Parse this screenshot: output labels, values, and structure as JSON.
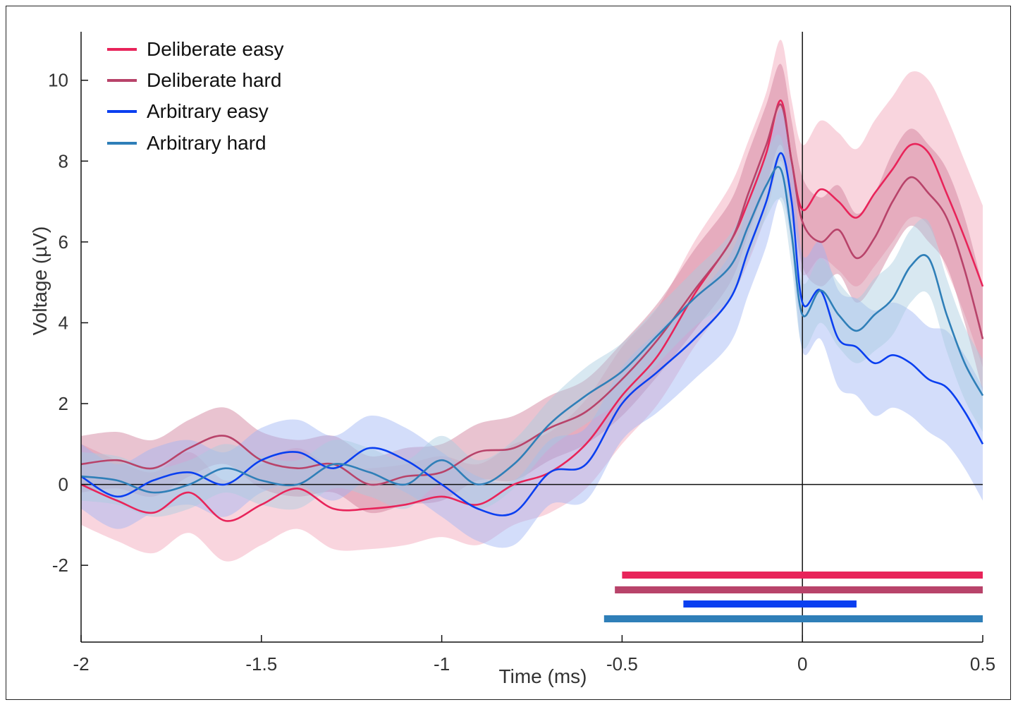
{
  "chart_data": {
    "type": "line",
    "title": "",
    "xlabel": "Time (ms)",
    "ylabel": "Voltage (µV)",
    "xlim": [
      -2,
      0.5
    ],
    "ylim": [
      -3.9,
      11.2
    ],
    "x_ticks": [
      "-2",
      "-1.5",
      "-1",
      "-0.5",
      "0",
      "0.5"
    ],
    "x_tick_values": [
      -2,
      -1.5,
      -1,
      -0.5,
      0,
      0.5
    ],
    "y_ticks": [
      "-2",
      "0",
      "2",
      "4",
      "6",
      "8",
      "10"
    ],
    "y_tick_values": [
      -2,
      0,
      2,
      4,
      6,
      8,
      10
    ],
    "grid": false,
    "reference_lines": {
      "x": 0,
      "y": 0
    },
    "legend_position": "top-left",
    "series": [
      {
        "name": "Deliberate easy",
        "color": "#e8245a",
        "band_color": "#f2a2b6",
        "x": [
          -2.0,
          -1.9,
          -1.8,
          -1.7,
          -1.6,
          -1.5,
          -1.4,
          -1.3,
          -1.2,
          -1.1,
          -1.0,
          -0.9,
          -0.8,
          -0.7,
          -0.6,
          -0.5,
          -0.4,
          -0.3,
          -0.2,
          -0.15,
          -0.1,
          -0.06,
          -0.03,
          0.0,
          0.05,
          0.1,
          0.15,
          0.2,
          0.25,
          0.3,
          0.35,
          0.4,
          0.45,
          0.5
        ],
        "y": [
          0.0,
          -0.4,
          -0.7,
          -0.2,
          -0.9,
          -0.5,
          -0.1,
          -0.6,
          -0.6,
          -0.5,
          -0.3,
          -0.5,
          0.0,
          0.3,
          1.0,
          2.2,
          3.2,
          4.7,
          6.0,
          7.0,
          8.2,
          9.5,
          8.0,
          6.8,
          7.3,
          7.0,
          6.6,
          7.2,
          7.8,
          8.4,
          8.2,
          7.2,
          6.1,
          4.9
        ],
        "band_halfwidth": [
          1.0,
          1.0,
          1.0,
          1.0,
          1.0,
          1.0,
          1.0,
          1.0,
          1.0,
          1.0,
          1.0,
          1.0,
          1.0,
          1.0,
          1.1,
          1.2,
          1.2,
          1.3,
          1.4,
          1.5,
          1.5,
          1.5,
          1.5,
          1.6,
          1.7,
          1.7,
          1.7,
          1.8,
          1.8,
          1.8,
          1.8,
          1.9,
          1.9,
          2.0
        ],
        "significance": [
          -0.5,
          0.5
        ]
      },
      {
        "name": "Deliberate hard",
        "color": "#b8436a",
        "band_color": "#cf7b96",
        "x": [
          -2.0,
          -1.9,
          -1.8,
          -1.7,
          -1.6,
          -1.5,
          -1.4,
          -1.3,
          -1.2,
          -1.1,
          -1.0,
          -0.9,
          -0.8,
          -0.7,
          -0.6,
          -0.5,
          -0.4,
          -0.3,
          -0.2,
          -0.15,
          -0.1,
          -0.06,
          -0.03,
          0.0,
          0.05,
          0.1,
          0.15,
          0.2,
          0.25,
          0.3,
          0.35,
          0.4,
          0.45,
          0.5
        ],
        "y": [
          0.5,
          0.6,
          0.4,
          0.9,
          1.2,
          0.6,
          0.4,
          0.5,
          0.0,
          0.2,
          0.3,
          0.8,
          0.9,
          1.4,
          1.8,
          2.6,
          3.6,
          4.8,
          6.0,
          7.2,
          8.4,
          9.4,
          8.0,
          6.5,
          6.0,
          6.3,
          5.6,
          6.1,
          7.0,
          7.6,
          7.2,
          6.6,
          5.3,
          3.6
        ],
        "band_halfwidth": [
          0.7,
          0.7,
          0.7,
          0.7,
          0.7,
          0.7,
          0.7,
          0.7,
          0.7,
          0.7,
          0.7,
          0.7,
          0.8,
          0.8,
          0.8,
          0.9,
          0.9,
          1.0,
          1.0,
          1.0,
          1.0,
          1.0,
          1.0,
          1.1,
          1.1,
          1.1,
          1.1,
          1.1,
          1.2,
          1.2,
          1.2,
          1.2,
          1.3,
          1.3
        ],
        "significance": [
          -0.52,
          0.5
        ]
      },
      {
        "name": "Arbitrary easy",
        "color": "#0a3ff0",
        "band_color": "#9db4f5",
        "x": [
          -2.0,
          -1.9,
          -1.8,
          -1.7,
          -1.6,
          -1.5,
          -1.4,
          -1.3,
          -1.2,
          -1.1,
          -1.0,
          -0.9,
          -0.8,
          -0.7,
          -0.6,
          -0.5,
          -0.4,
          -0.3,
          -0.2,
          -0.15,
          -0.1,
          -0.06,
          -0.03,
          0.0,
          0.05,
          0.1,
          0.15,
          0.2,
          0.25,
          0.3,
          0.35,
          0.4,
          0.45,
          0.5
        ],
        "y": [
          0.2,
          -0.3,
          0.1,
          0.3,
          0.0,
          0.6,
          0.8,
          0.4,
          0.9,
          0.6,
          0.0,
          -0.6,
          -0.7,
          0.3,
          0.5,
          2.0,
          2.8,
          3.6,
          4.6,
          5.8,
          7.0,
          8.2,
          7.0,
          4.5,
          4.8,
          3.6,
          3.4,
          3.0,
          3.2,
          3.0,
          2.6,
          2.4,
          1.8,
          1.0
        ],
        "band_halfwidth": [
          0.8,
          0.8,
          0.8,
          0.8,
          0.8,
          0.8,
          0.8,
          0.8,
          0.8,
          0.8,
          0.8,
          0.8,
          0.8,
          0.8,
          0.9,
          0.9,
          1.0,
          1.0,
          1.1,
          1.1,
          1.1,
          1.1,
          1.1,
          1.2,
          1.2,
          1.2,
          1.2,
          1.3,
          1.3,
          1.3,
          1.3,
          1.4,
          1.4,
          1.4
        ],
        "significance": [
          -0.33,
          0.15
        ]
      },
      {
        "name": "Arbitrary hard",
        "color": "#2f7fb8",
        "band_color": "#a9cbe0",
        "x": [
          -2.0,
          -1.9,
          -1.8,
          -1.7,
          -1.6,
          -1.5,
          -1.4,
          -1.3,
          -1.2,
          -1.1,
          -1.0,
          -0.9,
          -0.8,
          -0.7,
          -0.6,
          -0.5,
          -0.4,
          -0.3,
          -0.2,
          -0.15,
          -0.1,
          -0.06,
          -0.03,
          0.0,
          0.05,
          0.1,
          0.15,
          0.2,
          0.25,
          0.3,
          0.35,
          0.4,
          0.45,
          0.5
        ],
        "y": [
          0.2,
          0.1,
          -0.2,
          0.0,
          0.4,
          0.1,
          0.0,
          0.5,
          0.3,
          0.0,
          0.6,
          0.0,
          0.5,
          1.5,
          2.2,
          2.8,
          3.7,
          4.6,
          5.4,
          6.4,
          7.4,
          7.8,
          6.2,
          4.2,
          4.8,
          4.2,
          3.8,
          4.2,
          4.6,
          5.4,
          5.6,
          4.2,
          3.0,
          2.2
        ],
        "band_halfwidth": [
          0.6,
          0.6,
          0.6,
          0.6,
          0.6,
          0.6,
          0.6,
          0.6,
          0.6,
          0.6,
          0.6,
          0.6,
          0.6,
          0.6,
          0.7,
          0.7,
          0.7,
          0.7,
          0.8,
          0.8,
          0.8,
          0.8,
          0.8,
          0.8,
          0.8,
          0.8,
          0.8,
          0.9,
          0.9,
          0.9,
          0.9,
          0.9,
          0.9,
          0.9
        ],
        "significance": [
          -0.55,
          0.5
        ]
      }
    ]
  }
}
